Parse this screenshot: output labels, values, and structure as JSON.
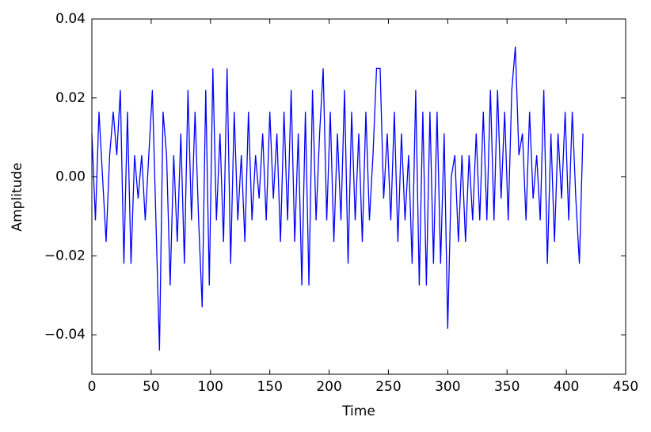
{
  "chart_data": {
    "type": "line",
    "xlabel": "Time",
    "ylabel": "Amplitude",
    "color": "#0000ff",
    "x": [
      0,
      3,
      6,
      9,
      12,
      15,
      18,
      21,
      24,
      27,
      30,
      33,
      36,
      39,
      42,
      45,
      48,
      51,
      54,
      57,
      60,
      63,
      66,
      69,
      72,
      75,
      78,
      81,
      84,
      87,
      90,
      93,
      96,
      99,
      102,
      105,
      108,
      111,
      114,
      117,
      120,
      123,
      126,
      129,
      132,
      135,
      138,
      141,
      144,
      147,
      150,
      153,
      156,
      159,
      162,
      165,
      168,
      171,
      174,
      177,
      180,
      183,
      186,
      189,
      192,
      195,
      198,
      201,
      204,
      207,
      210,
      213,
      216,
      219,
      222,
      225,
      228,
      231,
      234,
      237,
      240,
      243,
      246,
      249,
      252,
      255,
      258,
      261,
      264,
      267,
      270,
      273,
      276,
      279,
      282,
      285,
      288,
      291,
      294,
      297,
      300,
      303,
      306,
      309,
      312,
      315,
      318,
      321,
      324,
      327,
      330,
      333,
      336,
      339,
      342,
      345,
      348,
      351,
      354,
      357,
      360,
      363,
      366,
      369,
      372,
      375,
      378,
      381,
      384,
      387,
      390,
      393,
      396,
      399,
      402,
      405,
      408,
      411,
      414
    ],
    "values": [
      0.011,
      -0.011,
      0.0165,
      0,
      -0.0165,
      0.0055,
      0.0165,
      0.0055,
      0.022,
      -0.022,
      0.0165,
      -0.022,
      0.0055,
      -0.0055,
      0.0055,
      -0.011,
      0.0055,
      0.022,
      -0.011,
      -0.044,
      0.0165,
      0.0055,
      -0.0275,
      0.0055,
      -0.0165,
      0.011,
      -0.022,
      0.022,
      -0.011,
      0.0165,
      -0.011,
      -0.033,
      0.022,
      -0.0275,
      0.0275,
      -0.011,
      0.011,
      -0.0165,
      0.0275,
      -0.022,
      0.0165,
      -0.011,
      0.0055,
      -0.0165,
      0.0165,
      -0.011,
      0.0055,
      -0.0055,
      0.011,
      -0.011,
      0.0165,
      -0.0055,
      0.011,
      -0.0165,
      0.0165,
      -0.011,
      0.022,
      -0.0165,
      0.011,
      -0.0275,
      0.0165,
      -0.0275,
      0.022,
      -0.011,
      0.011,
      0.0275,
      -0.011,
      0.0165,
      -0.0165,
      0.011,
      -0.011,
      0.022,
      -0.022,
      0.0165,
      -0.011,
      0.011,
      -0.0165,
      0.0165,
      -0.011,
      0.0055,
      0.0275,
      0.0275,
      -0.0055,
      0.011,
      -0.011,
      0.0165,
      -0.0165,
      0.011,
      -0.011,
      0.0055,
      -0.022,
      0.022,
      -0.0275,
      0.0165,
      -0.0275,
      0.0165,
      -0.022,
      0.0165,
      -0.022,
      0.011,
      -0.0385,
      0,
      0.0055,
      -0.0165,
      0.0055,
      -0.0165,
      0.0055,
      -0.011,
      0.011,
      -0.011,
      0.0165,
      -0.011,
      0.022,
      -0.011,
      0.022,
      -0.0055,
      0.0165,
      -0.011,
      0.022,
      0.033,
      0.0055,
      0.011,
      -0.011,
      0.0165,
      -0.0055,
      0.0055,
      -0.011,
      0.022,
      -0.022,
      0.011,
      -0.0165,
      0.011,
      -0.0055,
      0.0165,
      -0.011,
      0.0165,
      -0.0055,
      -0.022,
      0.011
    ],
    "xlim": [
      0,
      450
    ],
    "xticks": [
      0,
      50,
      100,
      150,
      200,
      250,
      300,
      350,
      400,
      450
    ],
    "ylim": [
      -0.05,
      0.04
    ],
    "yticks": [
      {
        "value": -0.04,
        "label": "−0.04"
      },
      {
        "value": -0.02,
        "label": "−0.02"
      },
      {
        "value": 0,
        "label": "0.00"
      },
      0.02,
      0.04
    ]
  }
}
